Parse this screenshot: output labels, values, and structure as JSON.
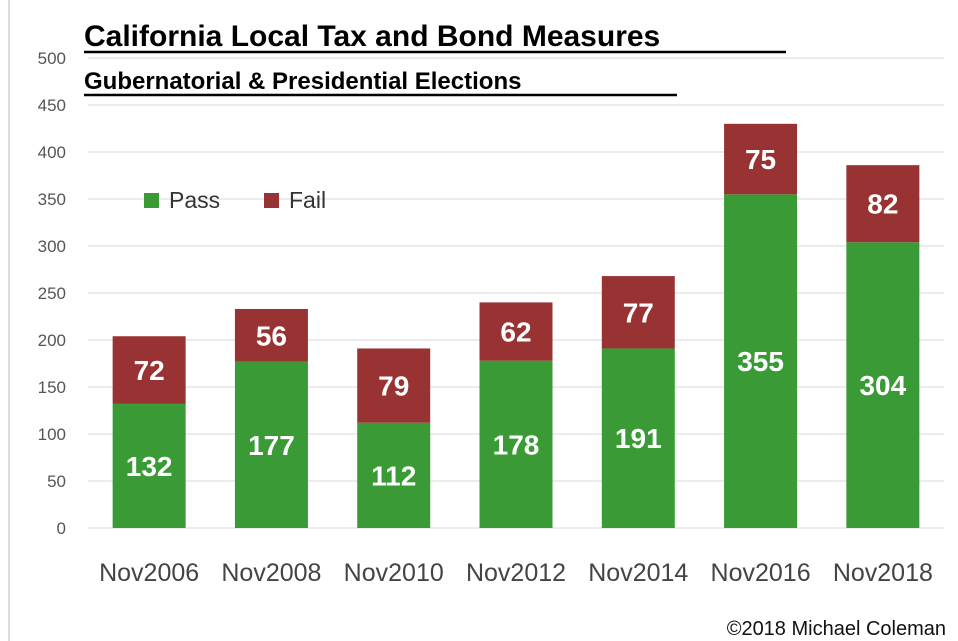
{
  "chart_data": {
    "type": "bar",
    "stacked": true,
    "title": "California Local Tax and Bond Measures",
    "subtitle": "Gubernatorial & Presidential Elections",
    "categories": [
      "Nov2006",
      "Nov2008",
      "Nov2010",
      "Nov2012",
      "Nov2014",
      "Nov2016",
      "Nov2018"
    ],
    "series": [
      {
        "name": "Pass",
        "color": "#3a9a36",
        "values": [
          132,
          177,
          112,
          178,
          191,
          355,
          304
        ]
      },
      {
        "name": "Fail",
        "color": "#993333",
        "values": [
          72,
          56,
          79,
          62,
          77,
          75,
          82
        ]
      }
    ],
    "ylim": [
      0,
      500
    ],
    "yticks": [
      0,
      50,
      100,
      150,
      200,
      250,
      300,
      350,
      400,
      450,
      500
    ],
    "grid": true,
    "legend": "top-left",
    "credit": "©2018 Michael Coleman"
  }
}
